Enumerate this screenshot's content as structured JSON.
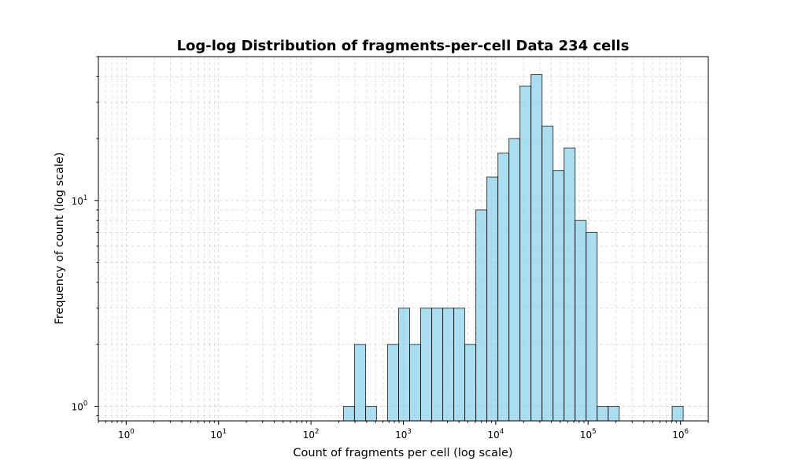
{
  "chart_data": {
    "type": "bar",
    "title": "Log-log Distribution of fragments-per-cell Data 234 cells",
    "xlabel": "Count of fragments per cell (log scale)",
    "ylabel": "Frequency of count (log scale)",
    "xscale": "log",
    "yscale": "log",
    "xlim": [
      0.5,
      2000000
    ],
    "ylim": [
      0.85,
      50
    ],
    "grid": true,
    "x_ticks": [
      {
        "value": 1,
        "base": "10",
        "exp": "0"
      },
      {
        "value": 10,
        "base": "10",
        "exp": "1"
      },
      {
        "value": 100,
        "base": "10",
        "exp": "2"
      },
      {
        "value": 1000,
        "base": "10",
        "exp": "3"
      },
      {
        "value": 10000,
        "base": "10",
        "exp": "4"
      },
      {
        "value": 100000,
        "base": "10",
        "exp": "5"
      },
      {
        "value": 1000000,
        "base": "10",
        "exp": "6"
      }
    ],
    "y_ticks": [
      {
        "value": 1,
        "base": "10",
        "exp": "0"
      },
      {
        "value": 10,
        "base": "10",
        "exp": "1"
      }
    ],
    "bins": [
      {
        "x0": 225,
        "x1": 296,
        "count": 1
      },
      {
        "x0": 296,
        "x1": 390,
        "count": 2
      },
      {
        "x0": 390,
        "x1": 513,
        "count": 1
      },
      {
        "x0": 513,
        "x1": 675,
        "count": 0
      },
      {
        "x0": 675,
        "x1": 889,
        "count": 2
      },
      {
        "x0": 889,
        "x1": 1170,
        "count": 3
      },
      {
        "x0": 1170,
        "x1": 1540,
        "count": 2
      },
      {
        "x0": 1540,
        "x1": 2028,
        "count": 3
      },
      {
        "x0": 2028,
        "x1": 2670,
        "count": 3
      },
      {
        "x0": 2670,
        "x1": 3515,
        "count": 3
      },
      {
        "x0": 3515,
        "x1": 4627,
        "count": 3
      },
      {
        "x0": 4627,
        "x1": 6092,
        "count": 2
      },
      {
        "x0": 6092,
        "x1": 8020,
        "count": 9
      },
      {
        "x0": 8020,
        "x1": 10558,
        "count": 13
      },
      {
        "x0": 10558,
        "x1": 13900,
        "count": 17
      },
      {
        "x0": 13900,
        "x1": 18299,
        "count": 20
      },
      {
        "x0": 18299,
        "x1": 24090,
        "count": 36
      },
      {
        "x0": 24090,
        "x1": 31714,
        "count": 41
      },
      {
        "x0": 31714,
        "x1": 41751,
        "count": 23
      },
      {
        "x0": 41751,
        "x1": 54963,
        "count": 14
      },
      {
        "x0": 54963,
        "x1": 72360,
        "count": 18
      },
      {
        "x0": 72360,
        "x1": 95260,
        "count": 8
      },
      {
        "x0": 95260,
        "x1": 125409,
        "count": 7
      },
      {
        "x0": 125409,
        "x1": 165100,
        "count": 1
      },
      {
        "x0": 165100,
        "x1": 217350,
        "count": 1
      },
      {
        "x0": 813000,
        "x1": 1070000,
        "count": 1
      }
    ],
    "colors": {
      "bar_fill": "#87CEEB",
      "bar_edge": "#000000",
      "grid": "#b0b0b0"
    }
  }
}
